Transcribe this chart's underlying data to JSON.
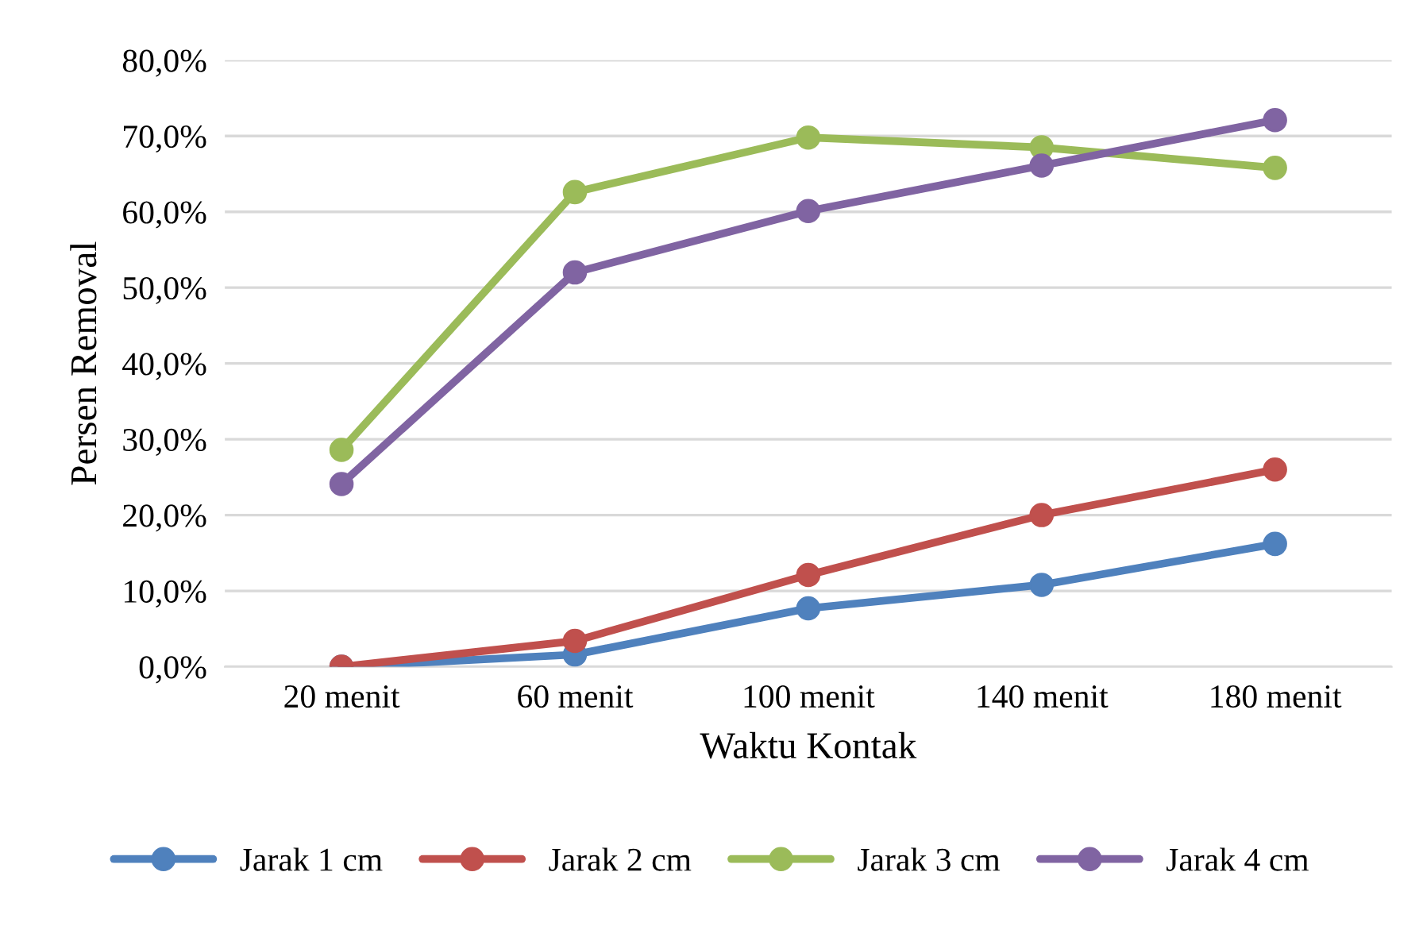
{
  "chart_data": {
    "type": "line",
    "xlabel": "Waktu Kontak",
    "ylabel": "Persen Removal",
    "categories": [
      "20 menit",
      "60 menit",
      "100 menit",
      "140 menit",
      "180 menit"
    ],
    "series": [
      {
        "name": "Jarak 1 cm",
        "color": "#4f81bd",
        "values": [
          0.0,
          1.6,
          7.7,
          10.8,
          16.2
        ]
      },
      {
        "name": "Jarak 2 cm",
        "color": "#c0504d",
        "values": [
          0.0,
          3.4,
          12.1,
          20.0,
          26.0
        ]
      },
      {
        "name": "Jarak 3 cm",
        "color": "#9bbb59",
        "values": [
          28.6,
          62.6,
          69.8,
          68.5,
          65.8
        ]
      },
      {
        "name": "Jarak 4 cm",
        "color": "#8064a2",
        "values": [
          24.1,
          52.0,
          60.1,
          66.1,
          72.1
        ]
      }
    ],
    "ylim": [
      0,
      80
    ],
    "yticks": [
      {
        "value": 0,
        "label": "0,0%"
      },
      {
        "value": 10,
        "label": "10,0%"
      },
      {
        "value": 20,
        "label": "20,0%"
      },
      {
        "value": 30,
        "label": "30,0%"
      },
      {
        "value": 40,
        "label": "40,0%"
      },
      {
        "value": 50,
        "label": "50,0%"
      },
      {
        "value": 60,
        "label": "60,0%"
      },
      {
        "value": 70,
        "label": "70,0%"
      },
      {
        "value": 80,
        "label": "80,0%"
      }
    ],
    "grid": "y",
    "legend": "bottom",
    "marker": "circle",
    "line_style": "solid"
  }
}
